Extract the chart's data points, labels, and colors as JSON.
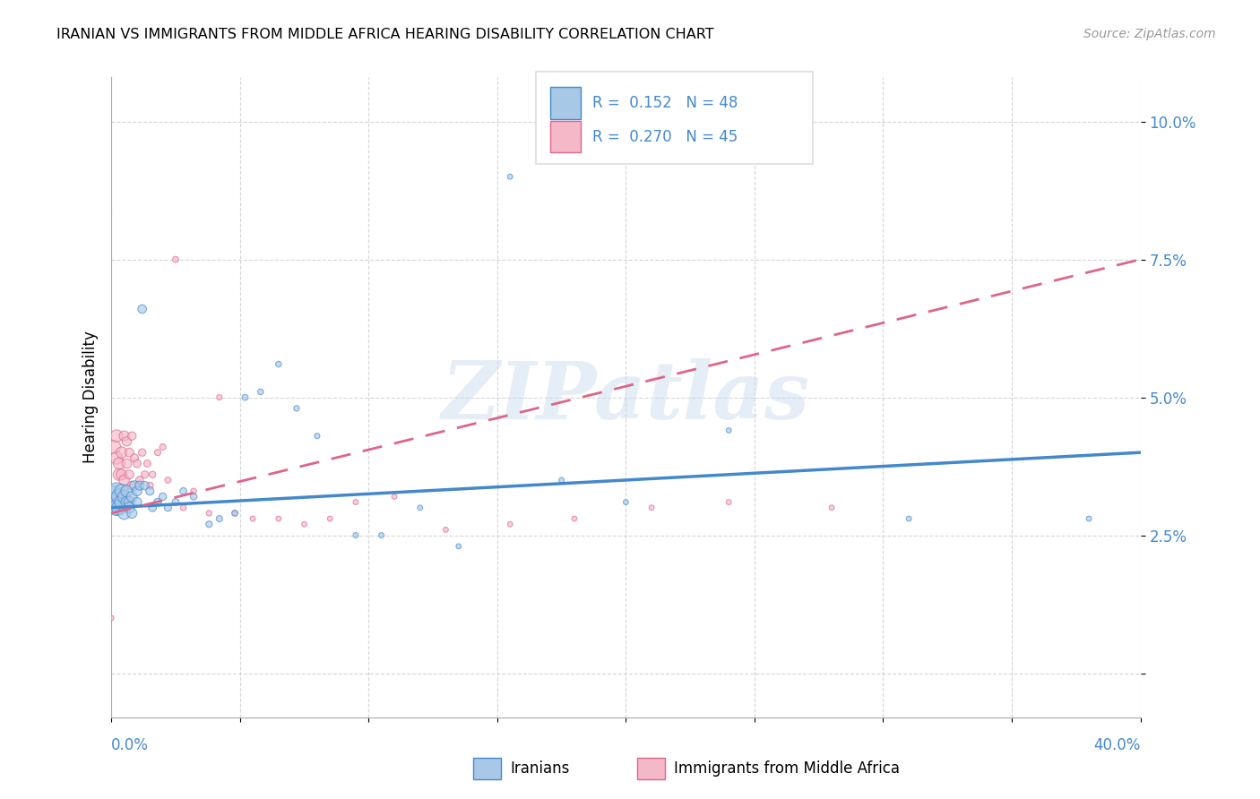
{
  "title": "IRANIAN VS IMMIGRANTS FROM MIDDLE AFRICA HEARING DISABILITY CORRELATION CHART",
  "source": "Source: ZipAtlas.com",
  "ylabel": "Hearing Disability",
  "yticks": [
    0.0,
    0.025,
    0.05,
    0.075,
    0.1
  ],
  "ytick_labels": [
    "",
    "2.5%",
    "5.0%",
    "7.5%",
    "10.0%"
  ],
  "xlim": [
    0.0,
    0.4
  ],
  "ylim": [
    -0.008,
    0.108
  ],
  "legend_r1": "R =  0.152",
  "legend_n1": "N = 48",
  "legend_r2": "R =  0.270",
  "legend_n2": "N = 45",
  "color_blue": "#a8c8e8",
  "color_pink": "#f4b8c8",
  "color_blue_line": "#4488cc",
  "color_pink_line": "#dd6688",
  "watermark": "ZIPatlas",
  "iranians_x": [
    0.001,
    0.001,
    0.002,
    0.002,
    0.003,
    0.003,
    0.004,
    0.004,
    0.005,
    0.005,
    0.006,
    0.006,
    0.007,
    0.007,
    0.008,
    0.008,
    0.009,
    0.01,
    0.01,
    0.011,
    0.012,
    0.013,
    0.015,
    0.016,
    0.018,
    0.02,
    0.022,
    0.025,
    0.028,
    0.032,
    0.038,
    0.042,
    0.048,
    0.052,
    0.058,
    0.065,
    0.072,
    0.08,
    0.095,
    0.105,
    0.12,
    0.135,
    0.155,
    0.175,
    0.2,
    0.24,
    0.31,
    0.38
  ],
  "iranians_y": [
    0.032,
    0.031,
    0.033,
    0.03,
    0.032,
    0.03,
    0.031,
    0.033,
    0.032,
    0.029,
    0.033,
    0.031,
    0.031,
    0.03,
    0.032,
    0.029,
    0.034,
    0.033,
    0.031,
    0.034,
    0.066,
    0.034,
    0.033,
    0.03,
    0.031,
    0.032,
    0.03,
    0.031,
    0.033,
    0.032,
    0.027,
    0.028,
    0.029,
    0.05,
    0.051,
    0.056,
    0.048,
    0.043,
    0.025,
    0.025,
    0.03,
    0.023,
    0.09,
    0.035,
    0.031,
    0.044,
    0.028,
    0.028
  ],
  "iranians_size": [
    300,
    200,
    180,
    160,
    150,
    140,
    130,
    120,
    110,
    100,
    90,
    85,
    80,
    75,
    70,
    65,
    60,
    58,
    55,
    52,
    48,
    45,
    42,
    40,
    38,
    36,
    34,
    32,
    30,
    28,
    26,
    25,
    24,
    23,
    22,
    21,
    20,
    19,
    18,
    18,
    17,
    17,
    17,
    17,
    17,
    17,
    17,
    17
  ],
  "middleafrica_x": [
    0.001,
    0.002,
    0.002,
    0.003,
    0.003,
    0.004,
    0.004,
    0.005,
    0.005,
    0.006,
    0.006,
    0.007,
    0.007,
    0.008,
    0.008,
    0.009,
    0.01,
    0.011,
    0.012,
    0.013,
    0.014,
    0.015,
    0.016,
    0.018,
    0.02,
    0.022,
    0.025,
    0.028,
    0.032,
    0.038,
    0.042,
    0.048,
    0.055,
    0.065,
    0.075,
    0.085,
    0.095,
    0.11,
    0.13,
    0.155,
    0.18,
    0.21,
    0.24,
    0.28,
    0.0
  ],
  "middleafrica_y": [
    0.041,
    0.039,
    0.043,
    0.036,
    0.038,
    0.04,
    0.036,
    0.035,
    0.043,
    0.038,
    0.042,
    0.036,
    0.04,
    0.034,
    0.043,
    0.039,
    0.038,
    0.035,
    0.04,
    0.036,
    0.038,
    0.034,
    0.036,
    0.04,
    0.041,
    0.035,
    0.075,
    0.03,
    0.033,
    0.029,
    0.05,
    0.029,
    0.028,
    0.028,
    0.027,
    0.028,
    0.031,
    0.032,
    0.026,
    0.027,
    0.028,
    0.03,
    0.031,
    0.03,
    0.01
  ],
  "middleafrica_size": [
    120,
    100,
    95,
    90,
    85,
    80,
    75,
    70,
    65,
    60,
    55,
    52,
    50,
    48,
    45,
    42,
    40,
    38,
    36,
    34,
    32,
    30,
    28,
    26,
    25,
    24,
    23,
    22,
    21,
    20,
    19,
    18,
    18,
    17,
    17,
    17,
    17,
    17,
    17,
    17,
    17,
    17,
    17,
    17,
    17
  ],
  "iran_trend_x": [
    0.0,
    0.4
  ],
  "iran_trend_y": [
    0.03,
    0.04
  ],
  "ma_trend_x": [
    0.0,
    0.4
  ],
  "ma_trend_y": [
    0.029,
    0.075
  ]
}
